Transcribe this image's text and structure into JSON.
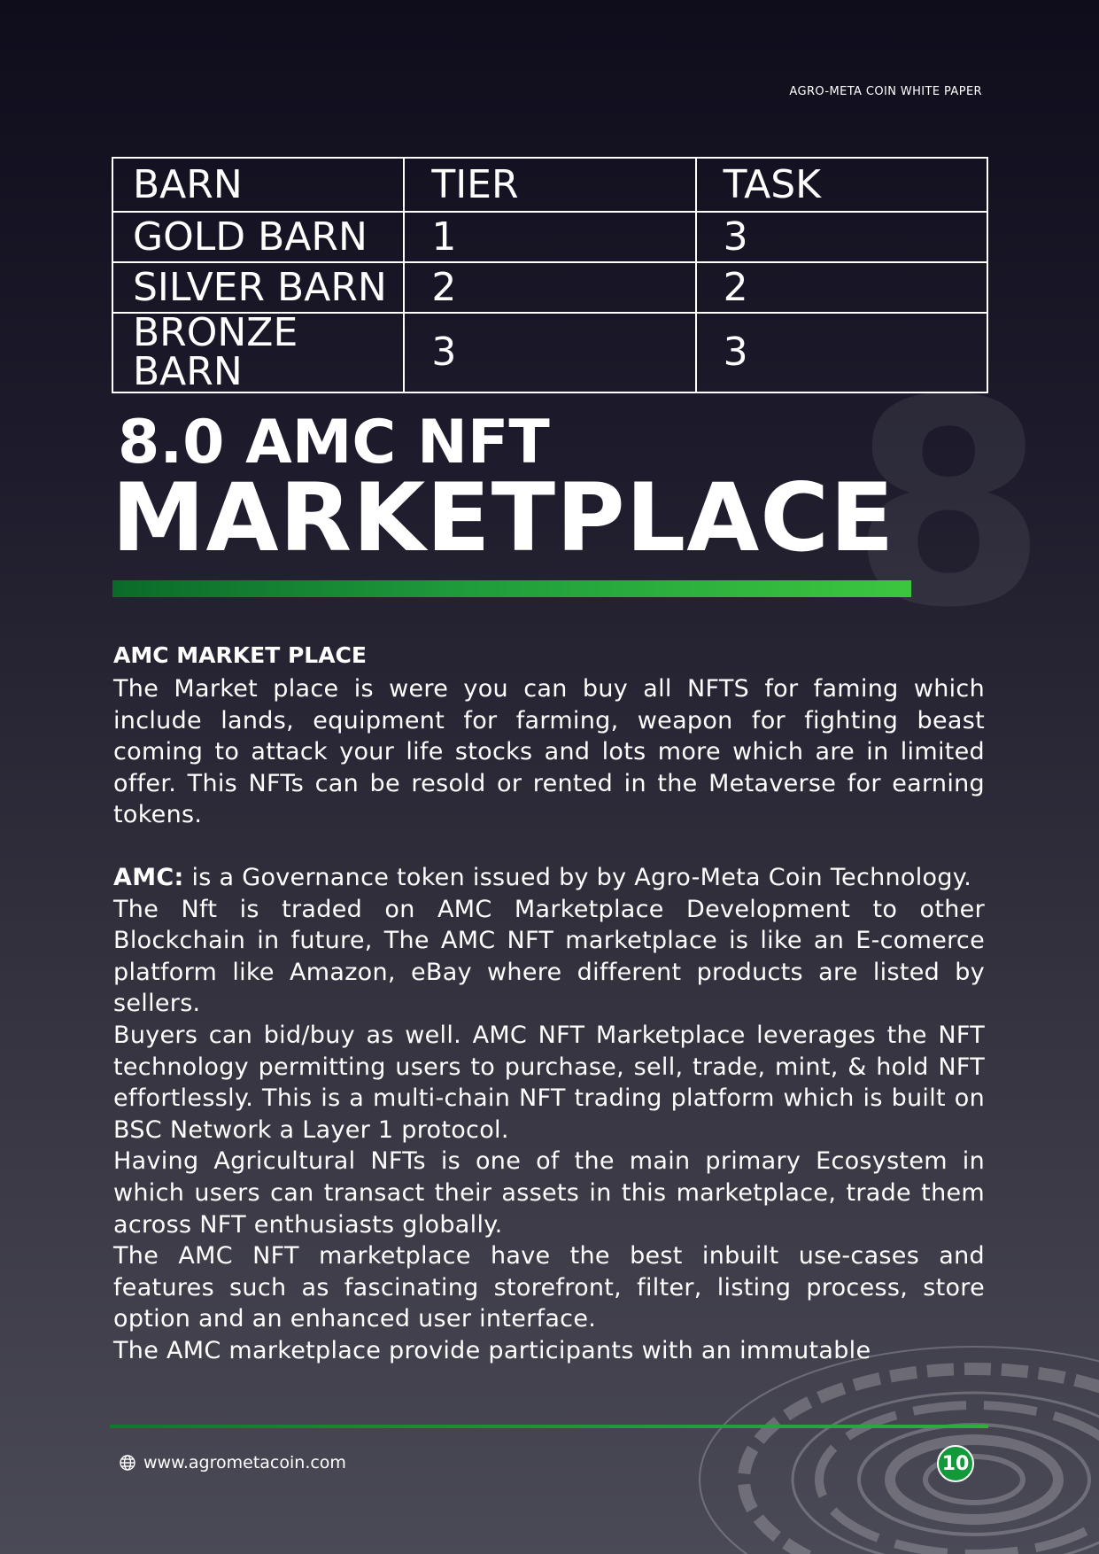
{
  "header": {
    "doc_title": "AGRO-META COIN WHITE PAPER"
  },
  "table": {
    "headers": [
      "BARN",
      "TIER",
      "TASK"
    ],
    "rows": [
      [
        "GOLD BARN",
        "1",
        "3"
      ],
      [
        "SILVER BARN",
        "2",
        "2"
      ],
      [
        "BRONZE BARN",
        "3",
        "3"
      ]
    ]
  },
  "section": {
    "watermark_number": "8",
    "title_line1": "8.0 AMC NFT",
    "title_line2": "MARKETPLACE"
  },
  "body": {
    "heading": "AMC MARKET PLACE",
    "para1": "The Market place is were you can buy all NFTS for faming which include lands, equipment for farming, weapon for fighting beast coming to attack your life stocks and lots more which are in limited offer. This NFTs can be resold or rented in the Metaverse for earning tokens.",
    "amc_label": "AMC:",
    "para2_rest": " is a Governance token issued by by Agro-Meta Coin Technology.",
    "para3": "The Nft is traded on AMC Marketplace Development to other Blockchain in future, The AMC NFT marketplace is like an E-comerce platform like Amazon, eBay where different products are listed by sellers.",
    "para4": "Buyers can bid/buy as well. AMC NFT Marketplace leverages the NFT technology permitting users to purchase, sell, trade, mint, & hold NFT effortlessly. This is a multi-chain NFT trading platform which is built on BSC Network a Layer 1 protocol.",
    "para5": "Having Agricultural NFTs is one of the main primary Ecosystem in which users can transact their assets in this marketplace, trade them across NFT enthusiasts globally.",
    "para6": "The AMC NFT marketplace have the best inbuilt use-cases and features such as fascinating storefront, filter, listing process, store option and an enhanced user interface.",
    "para7": "The AMC marketplace provide participants with an immutable"
  },
  "footer": {
    "website": "www.agrometacoin.com",
    "page_number": "10"
  }
}
